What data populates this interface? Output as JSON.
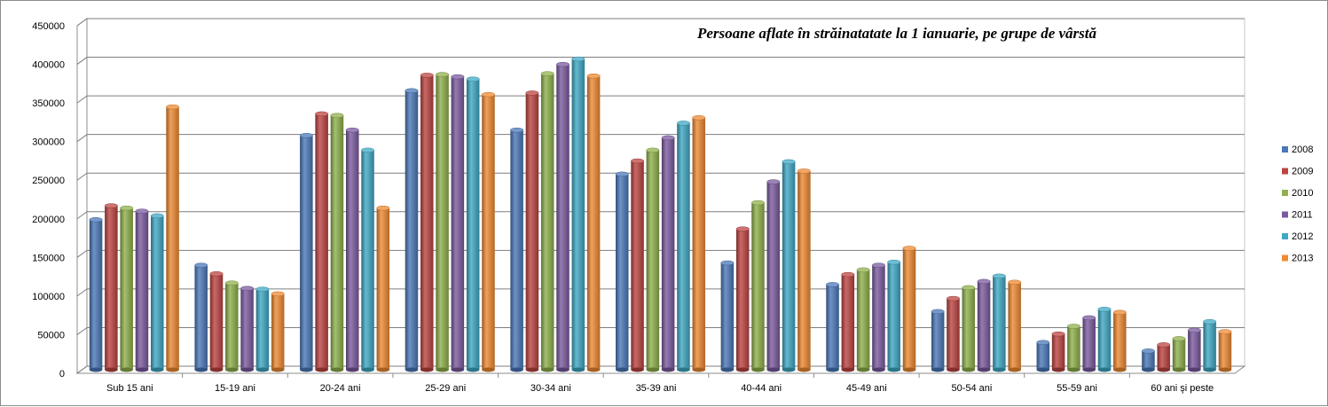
{
  "chart_data": {
    "type": "bar",
    "title": "Persoane aflate în străinatatate la 1 ianuarie, pe grupe de vârstă",
    "xlabel": "",
    "ylabel": "",
    "ylim": [
      0,
      450000
    ],
    "y_ticks": [
      "0",
      "50000",
      "100000",
      "150000",
      "200000",
      "250000",
      "300000",
      "350000",
      "400000",
      "450000"
    ],
    "grid": true,
    "legend_position": "right",
    "categories": [
      "Sub 15 ani",
      "15-19 ani",
      "20-24 ani",
      "25-29 ani",
      "30-34 ani",
      "35-39 ani",
      "40-44 ani",
      "45-49 ani",
      "50-54 ani",
      "55-59 ani",
      "60 ani şi peste"
    ],
    "series": [
      {
        "name": "2008",
        "color": "#4a78b8",
        "values": [
          192000,
          133000,
          301000,
          359000,
          308000,
          251000,
          136000,
          108000,
          73000,
          33000,
          22000
        ]
      },
      {
        "name": "2009",
        "color": "#bc4441",
        "values": [
          210000,
          122000,
          329000,
          379000,
          356000,
          268000,
          180000,
          121000,
          90000,
          44000,
          30000
        ]
      },
      {
        "name": "2010",
        "color": "#8fb04b",
        "values": [
          207000,
          110000,
          327000,
          380000,
          381000,
          282000,
          214000,
          127000,
          104000,
          54000,
          38000
        ]
      },
      {
        "name": "2011",
        "color": "#7a5a9f",
        "values": [
          203000,
          103000,
          308000,
          377000,
          393000,
          298000,
          241000,
          133000,
          112000,
          65000,
          49000
        ]
      },
      {
        "name": "2012",
        "color": "#3fa8c4",
        "values": [
          197000,
          102000,
          282000,
          374000,
          400000,
          317000,
          267000,
          137000,
          119000,
          76000,
          60000
        ]
      },
      {
        "name": "2013",
        "color": "#ee8a32",
        "values": [
          338000,
          96000,
          207000,
          354000,
          378000,
          324000,
          255000,
          155000,
          111000,
          72000,
          47000
        ]
      }
    ]
  }
}
